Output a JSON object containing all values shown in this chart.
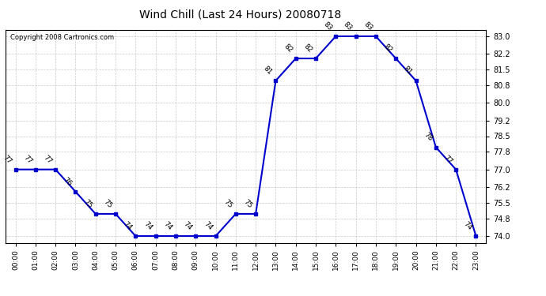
{
  "title": "Wind Chill (Last 24 Hours) 20080718",
  "copyright": "Copyright 2008 Cartronics.com",
  "hours": [
    0,
    1,
    2,
    3,
    4,
    5,
    6,
    7,
    8,
    9,
    10,
    11,
    12,
    13,
    14,
    15,
    16,
    17,
    18,
    19,
    20,
    21,
    22,
    23
  ],
  "values": [
    77,
    77,
    77,
    76,
    75,
    75,
    74,
    74,
    74,
    74,
    74,
    75,
    75,
    81,
    82,
    82,
    83,
    83,
    83,
    82,
    81,
    78,
    77,
    74
  ],
  "xlabels": [
    "00:00",
    "01:00",
    "02:00",
    "03:00",
    "04:00",
    "05:00",
    "06:00",
    "07:00",
    "08:00",
    "09:00",
    "10:00",
    "11:00",
    "12:00",
    "13:00",
    "14:00",
    "15:00",
    "16:00",
    "17:00",
    "18:00",
    "19:00",
    "20:00",
    "21:00",
    "22:00",
    "23:00"
  ],
  "ylim": [
    73.7,
    83.3
  ],
  "yticks": [
    74.0,
    74.8,
    75.5,
    76.2,
    77.0,
    77.8,
    78.5,
    79.2,
    80.0,
    80.8,
    81.5,
    82.2,
    83.0
  ],
  "line_color": "#0000CC",
  "marker_color": "#0000CC",
  "bg_color": "#ffffff",
  "grid_color": "#bbbbbb",
  "label_fontsize": 7,
  "title_fontsize": 10
}
